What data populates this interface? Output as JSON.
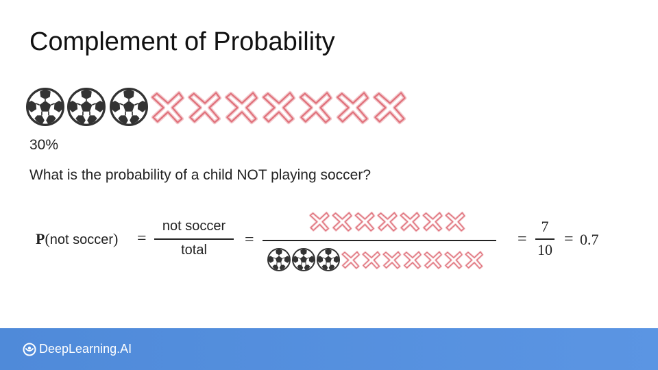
{
  "slide": {
    "title": "Complement of Probability",
    "percent": "30%",
    "question": "What is the probability of a child NOT playing soccer?"
  },
  "icons": {
    "top_row": {
      "soccer_count": 3,
      "not_soccer_count": 7,
      "soccer_icon": "soccer-ball-icon",
      "not_icon": "cross-icon"
    },
    "numerator_row": {
      "not_soccer_count": 7
    },
    "denominator_row": {
      "soccer_count": 3,
      "not_soccer_count": 7
    }
  },
  "formula": {
    "p": "P",
    "open_paren": "(",
    "arg": "not soccer",
    "close_paren": ")",
    "equals": "=",
    "numerator_text": "not soccer",
    "denominator_text": "total",
    "result_numerator": "7",
    "result_denominator": "10",
    "final_result": "0.7"
  },
  "footer": {
    "brand": "DeepLearning.AI"
  },
  "colors": {
    "cross_stroke": "#e0707a",
    "footer_bg": "#5590de",
    "ball_dark": "#333333"
  }
}
